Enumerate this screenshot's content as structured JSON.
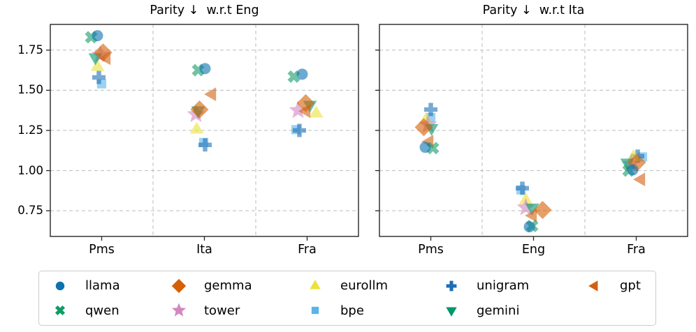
{
  "figure_name": "tokenizer-parity-figure",
  "legend": {
    "entries": [
      {
        "label": "llama",
        "marker": "circle",
        "color": "#0c72b0"
      },
      {
        "label": "qwen",
        "marker": "x",
        "color": "#119b65"
      },
      {
        "label": "gemma",
        "marker": "diamond",
        "color": "#d55f02"
      },
      {
        "label": "tower",
        "marker": "star",
        "color": "#d287c0"
      },
      {
        "label": "eurollm",
        "marker": "triangle-up",
        "color": "#ebe13a"
      },
      {
        "label": "bpe",
        "marker": "square",
        "color": "#58b4e9"
      },
      {
        "label": "unigram",
        "marker": "plus",
        "color": "#1d6fb5"
      },
      {
        "label": "gemini",
        "marker": "triangle-down",
        "color": "#00976b"
      },
      {
        "label": "gpt",
        "marker": "triangle-left",
        "color": "#d26011"
      }
    ]
  },
  "chart_data": [
    {
      "type": "scatter",
      "title": "Parity ↓  w.r.t Eng",
      "xlabel": "",
      "ylabel": "",
      "categories": [
        "Pms",
        "Ita",
        "Fra"
      ],
      "yticks": [
        0.75,
        1.0,
        1.25,
        1.5,
        1.75
      ],
      "ylim": [
        0.59,
        1.91
      ],
      "grid": true,
      "series": [
        {
          "name": "llama",
          "values": [
            1.84,
            1.635,
            1.6
          ],
          "dx": [
            -6,
            1,
            -7
          ]
        },
        {
          "name": "qwen",
          "values": [
            1.83,
            1.625,
            1.585
          ],
          "dx": [
            -15,
            -9,
            -19
          ]
        },
        {
          "name": "gemma",
          "values": [
            1.735,
            1.38,
            1.42
          ],
          "dx": [
            2,
            -7,
            -2
          ]
        },
        {
          "name": "tower",
          "values": [
            1.72,
            1.35,
            1.375
          ],
          "dx": [
            -2,
            -12,
            -13
          ]
        },
        {
          "name": "eurollm",
          "values": [
            1.645,
            1.255,
            1.355
          ],
          "dx": [
            -6,
            -11,
            13
          ]
        },
        {
          "name": "bpe",
          "values": [
            1.54,
            1.175,
            1.255
          ],
          "dx": [
            0,
            -1,
            -16
          ]
        },
        {
          "name": "unigram",
          "values": [
            1.58,
            1.16,
            1.25
          ],
          "dx": [
            -4,
            1,
            -11
          ]
        },
        {
          "name": "gemini",
          "values": [
            1.705,
            1.375,
            1.41
          ],
          "dx": [
            -9,
            -9,
            4
          ]
        },
        {
          "name": "gpt",
          "values": [
            1.7,
            1.475,
            1.37
          ],
          "dx": [
            7,
            11,
            -1
          ]
        }
      ]
    },
    {
      "type": "scatter",
      "title": "Parity ↓  w.r.t Ita",
      "xlabel": "",
      "ylabel": "",
      "categories": [
        "Pms",
        "Eng",
        "Fra"
      ],
      "yticks": [
        0.75,
        1.0,
        1.25,
        1.5,
        1.75
      ],
      "ylim": [
        0.59,
        1.91
      ],
      "grid": true,
      "series": [
        {
          "name": "llama",
          "values": [
            1.145,
            0.65,
            1.005
          ],
          "dx": [
            -8,
            -6,
            -5
          ]
        },
        {
          "name": "qwen",
          "values": [
            1.14,
            0.655,
            1.0
          ],
          "dx": [
            3,
            -2,
            -11
          ]
        },
        {
          "name": "gemma",
          "values": [
            1.27,
            0.755,
            1.05
          ],
          "dx": [
            -10,
            13,
            1
          ]
        },
        {
          "name": "tower",
          "values": [
            1.285,
            0.77,
            1.04
          ],
          "dx": [
            -4,
            -11,
            -8
          ]
        },
        {
          "name": "eurollm",
          "values": [
            1.315,
            0.815,
            1.085
          ],
          "dx": [
            -7,
            -11,
            -4
          ]
        },
        {
          "name": "bpe",
          "values": [
            1.33,
            0.88,
            1.085
          ],
          "dx": [
            0,
            -18,
            9
          ]
        },
        {
          "name": "unigram",
          "values": [
            1.38,
            0.89,
            1.09
          ],
          "dx": [
            0,
            -16,
            2
          ]
        },
        {
          "name": "gemini",
          "values": [
            1.265,
            0.77,
            1.05
          ],
          "dx": [
            1,
            -2,
            -13
          ]
        },
        {
          "name": "gpt",
          "values": [
            1.18,
            0.72,
            0.945
          ],
          "dx": [
            -2,
            -1,
            7
          ]
        }
      ]
    }
  ]
}
